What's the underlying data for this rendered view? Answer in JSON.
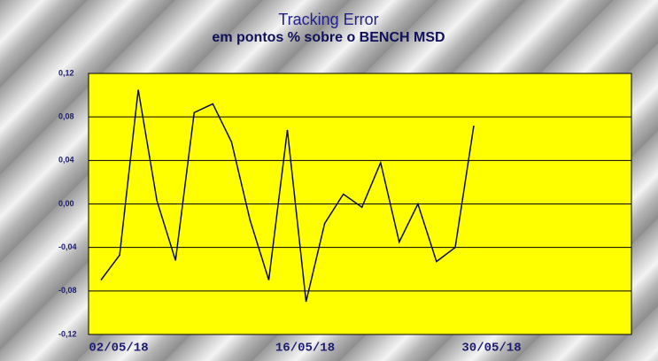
{
  "chart_data": {
    "type": "line",
    "title": "Tracking Error",
    "subtitle": "em pontos % sobre o BENCH MSD",
    "categories": [
      "02/05/18",
      null,
      null,
      null,
      null,
      null,
      null,
      null,
      null,
      null,
      "16/05/18",
      null,
      null,
      null,
      null,
      null,
      null,
      null,
      null,
      null,
      "30/05/18"
    ],
    "series": [
      {
        "name": "Tracking Error",
        "color": "#0a0a3c",
        "values": [
          -0.07,
          -0.047,
          0.105,
          0.003,
          -0.052,
          0.084,
          0.092,
          0.057,
          -0.015,
          -0.07,
          0.068,
          -0.09,
          -0.018,
          0.009,
          -0.003,
          0.038,
          -0.035,
          0.0,
          -0.053,
          -0.04,
          0.072
        ]
      }
    ],
    "ylim": [
      -0.12,
      0.12
    ],
    "yticks": [
      {
        "value": 0.12,
        "label": "0,12"
      },
      {
        "value": 0.08,
        "label": "0,08"
      },
      {
        "value": 0.04,
        "label": "0,04"
      },
      {
        "value": 0.0,
        "label": "0,00"
      },
      {
        "value": -0.04,
        "label": "-0,04"
      },
      {
        "value": -0.08,
        "label": "-0,08"
      },
      {
        "value": -0.12,
        "label": "-0,12"
      }
    ],
    "grid": true,
    "plot_color": "#ffff00"
  }
}
